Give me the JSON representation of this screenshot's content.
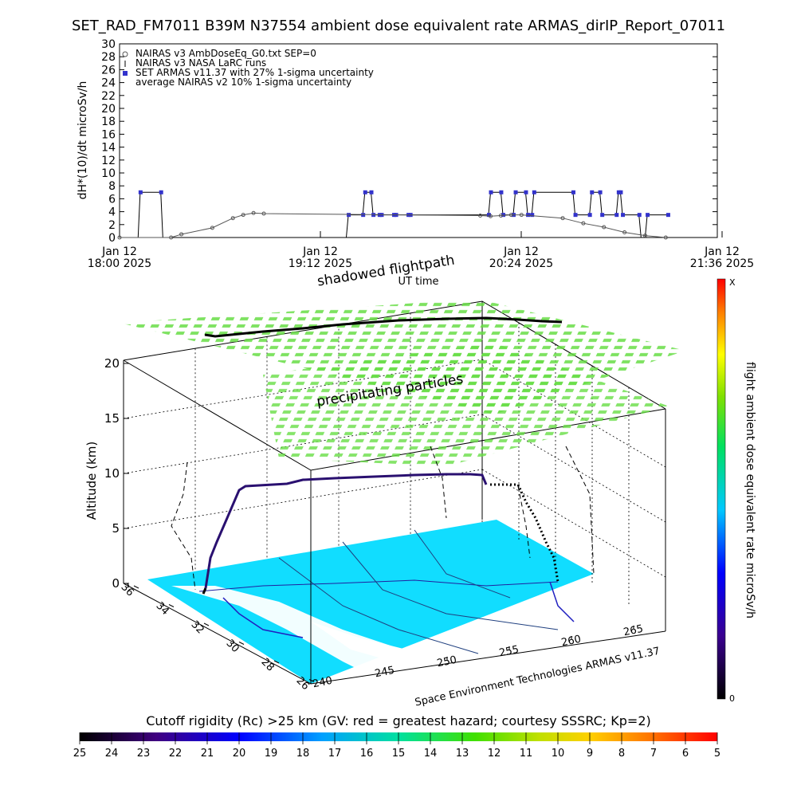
{
  "title": "SET_RAD_FM7011   B39M N37554 ambient dose equivalent rate ARMAS_dirIP_Report_07011",
  "chart_data": [
    {
      "type": "line",
      "ylabel": "dH*(10)/dt microSv/h",
      "xlabel": "UT time",
      "ylim": [
        0,
        30
      ],
      "yticks": [
        "0",
        "2",
        "4",
        "6",
        "8",
        "10",
        "12",
        "14",
        "16",
        "18",
        "20",
        "22",
        "24",
        "26",
        "28",
        "30"
      ],
      "xticks": [
        {
          "line1": "Jan 12",
          "line2": "18:00 2025"
        },
        {
          "line1": "Jan 12",
          "line2": "19:12 2025"
        },
        {
          "line1": "Jan 12",
          "line2": "20:24 2025"
        },
        {
          "line1": "Jan 12",
          "line2": "21:36 2025"
        }
      ],
      "legend_position": "top-left",
      "legend": [
        "NAIRAS v3 AmbDoseEq_G0.txt SEP=0",
        "NAIRAS v3 NASA LaRC runs",
        "SET ARMAS v11.37 with 27% 1-sigma uncertainty",
        "average NAIRAS v2 10% 1-sigma uncertainty"
      ],
      "series": [
        {
          "name": "SET ARMAS v11.37 with 27% 1-sigma uncertainty",
          "color": "#3333cc",
          "x": [
            0,
            0.9,
            1.0,
            2.0,
            2.1,
            2.7,
            2.8,
            3.0,
            3.1,
            4.6,
            4.7,
            4.9,
            5.0,
            5.5,
            5.6,
            6.1,
            6.2,
            6.6,
            6.7,
            7.0,
            7.1,
            7.8,
            7.9,
            8.2,
            8.3,
            9.0,
            9.1,
            9.5,
            9.6,
            11.0,
            11.1,
            11.8,
            11.9,
            12.2,
            12.3,
            12.6,
            12.7,
            13.3,
            13.4,
            14.0,
            14.1,
            17.9,
            18.0,
            18.5,
            18.6,
            19.1,
            19.2,
            19.7,
            19.8,
            20.0,
            20.1,
            22.0,
            22.1,
            22.8,
            22.9,
            23.3,
            23.4,
            24.1,
            24.2,
            24.3,
            24.4,
            25.2,
            25.3,
            25.5,
            25.6,
            26.6
          ],
          "y": [
            0,
            0,
            7,
            7,
            0,
            0,
            0,
            0,
            0,
            0,
            0,
            0,
            0,
            0,
            0,
            0,
            0,
            0,
            0,
            0,
            0,
            0,
            0,
            0,
            0,
            0,
            0,
            0,
            0,
            0,
            3.5,
            3.5,
            7,
            7,
            3.5,
            3.5,
            3.5,
            3.5,
            3.5,
            3.5,
            3.5,
            3.5,
            7,
            7,
            3.5,
            3.5,
            7,
            7,
            3.5,
            3.5,
            7,
            7,
            3.5,
            3.5,
            7,
            7,
            3.5,
            3.5,
            7,
            7,
            3.5,
            3.5,
            0,
            0,
            3.5,
            3.5
          ]
        },
        {
          "name": "NAIRAS v3 AmbDoseEq_G0.txt SEP=0",
          "color": "#555555",
          "x": [
            0,
            2.5,
            3.0,
            4.5,
            5.5,
            6.0,
            6.5,
            7.0,
            17.5,
            18.0,
            18.5,
            19.0,
            19.5,
            21.5,
            22.5,
            23.5,
            24.5,
            25.5,
            26.5
          ],
          "y": [
            0,
            0,
            0.5,
            1.5,
            3.0,
            3.5,
            3.8,
            3.7,
            3.4,
            3.3,
            3.4,
            3.5,
            3.5,
            3.0,
            2.2,
            1.6,
            0.8,
            0.3,
            0
          ]
        }
      ]
    },
    {
      "type": "line",
      "title": "shadowed flightpath",
      "zlabel": "Altitude (km)",
      "zticks": [
        "0",
        "5",
        "10",
        "15",
        "20"
      ],
      "lat_ticks": [
        "36",
        "34",
        "32",
        "30",
        "28",
        "26"
      ],
      "lon_ticks": [
        "240",
        "245",
        "250",
        "255",
        "260",
        "265"
      ],
      "annotation": "precipitating particles",
      "credit": "Space Environment Technologies ARMAS v11.37",
      "colorbar": {
        "label": "flight ambient dose equivalent rate microSv/h",
        "max_label": "X",
        "min_label": "0"
      },
      "cutoff_rigidity": {
        "label": "Cutoff rigidity (Rc) >25 km (GV: red = greatest hazard; courtesy SSSRC; Kp=2)",
        "ticks": [
          "25",
          "24",
          "23",
          "22",
          "21",
          "20",
          "19",
          "18",
          "17",
          "16",
          "15",
          "14",
          "13",
          "12",
          "11",
          "10",
          "9",
          "8",
          "7",
          "6",
          "5"
        ]
      }
    }
  ]
}
